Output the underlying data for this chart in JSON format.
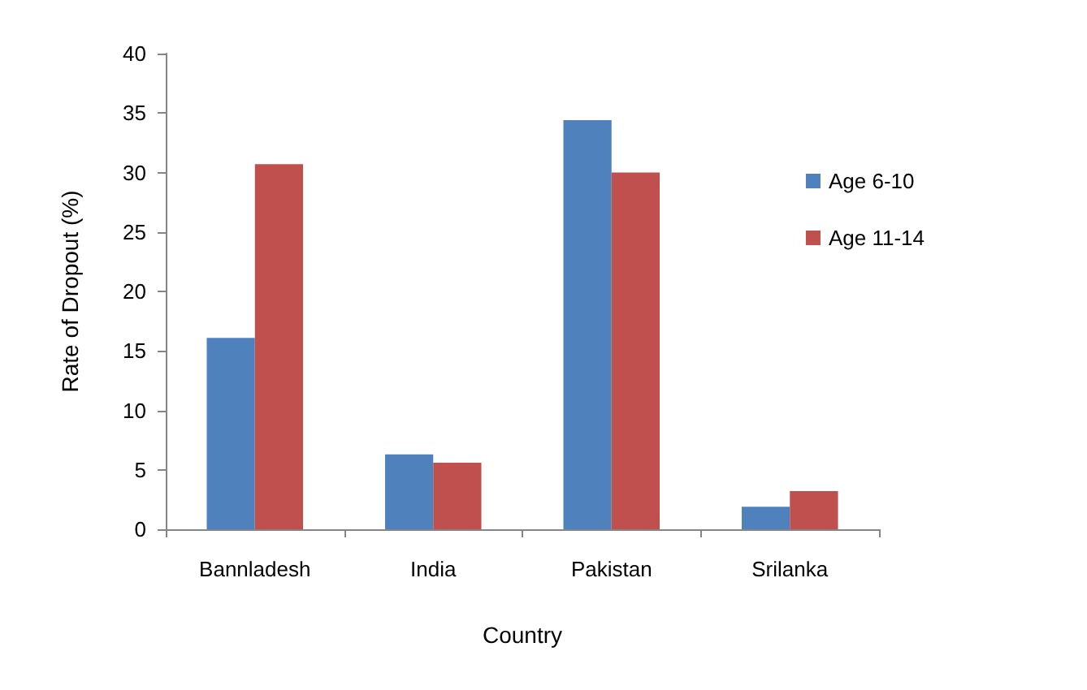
{
  "chart_data": {
    "type": "bar",
    "xlabel": "Country",
    "ylabel": "Rate of Dropout (%)",
    "categories": [
      "Bannladesh",
      "India",
      "Pakistan",
      "Srilanka"
    ],
    "series": [
      {
        "name": "Age 6-10",
        "color": "#4f81bd",
        "values": [
          16.1,
          6.3,
          34.4,
          1.9
        ]
      },
      {
        "name": "Age 11-14",
        "color": "#c0504d",
        "values": [
          30.7,
          5.6,
          30,
          3.2
        ]
      }
    ],
    "ylim": [
      0,
      40
    ],
    "yticks": [
      0,
      5,
      10,
      15,
      20,
      25,
      30,
      35,
      40
    ],
    "grid": false,
    "legend": "right"
  }
}
